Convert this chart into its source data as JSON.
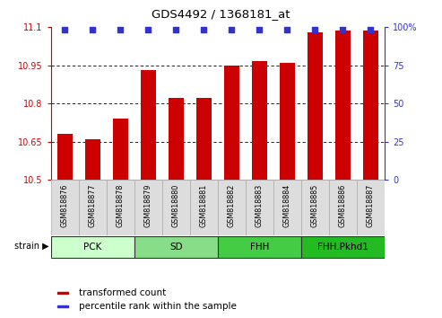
{
  "title": "GDS4492 / 1368181_at",
  "samples": [
    "GSM818876",
    "GSM818877",
    "GSM818878",
    "GSM818879",
    "GSM818880",
    "GSM818881",
    "GSM818882",
    "GSM818883",
    "GSM818884",
    "GSM818885",
    "GSM818886",
    "GSM818887"
  ],
  "bar_values": [
    10.68,
    10.66,
    10.74,
    10.93,
    10.82,
    10.82,
    10.95,
    10.965,
    10.96,
    11.08,
    11.085,
    11.085
  ],
  "percentile_values": [
    98,
    98,
    98,
    98,
    98,
    98,
    98,
    98,
    98,
    98,
    98,
    98
  ],
  "bar_color": "#cc0000",
  "percentile_color": "#3333cc",
  "ylim_left": [
    10.5,
    11.1
  ],
  "ylim_right": [
    0,
    100
  ],
  "yticks_left": [
    10.5,
    10.65,
    10.8,
    10.95,
    11.1
  ],
  "yticks_right": [
    0,
    25,
    50,
    75,
    100
  ],
  "ytick_labels_left": [
    "10.5",
    "10.65",
    "10.8",
    "10.95",
    "11.1"
  ],
  "ytick_labels_right": [
    "0",
    "25",
    "50",
    "75",
    "100%"
  ],
  "groups": [
    {
      "label": "PCK",
      "start": 0,
      "end": 3,
      "color": "#ccffcc"
    },
    {
      "label": "SD",
      "start": 3,
      "end": 6,
      "color": "#88dd88"
    },
    {
      "label": "FHH",
      "start": 6,
      "end": 9,
      "color": "#44cc44"
    },
    {
      "label": "FHH.Pkhd1",
      "start": 9,
      "end": 12,
      "color": "#22bb22"
    }
  ],
  "strain_label": "strain",
  "legend_items": [
    {
      "label": "transformed count",
      "color": "#cc0000"
    },
    {
      "label": "percentile rank within the sample",
      "color": "#3333cc"
    }
  ],
  "background_color": "#ffffff",
  "tick_color_left": "#cc0000",
  "tick_color_right": "#3333cc"
}
